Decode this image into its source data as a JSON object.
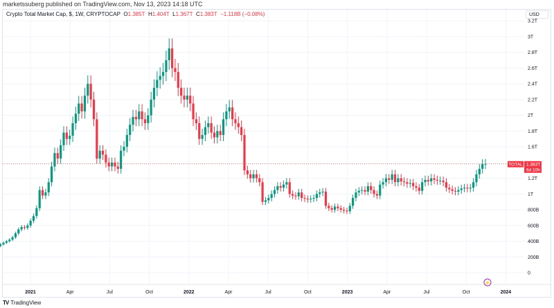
{
  "publisher": "marketssuberg published on TradingView.com, Nov 13, 2023 14:18 UTC",
  "legend": {
    "symbol": "Crypto Total Market Cap, $, 1W, CRYPTOCAP",
    "o_label": "O",
    "o": "1.385T",
    "h_label": "H",
    "h": "1.404T",
    "l_label": "L",
    "l": "1.367T",
    "c_label": "C",
    "c": "1.383T",
    "change": "−1.118B (−0.08%)"
  },
  "currency": "USD",
  "price_tag": {
    "symbol": "TOTAL",
    "price": "1.383T",
    "countdown": "6d 10h"
  },
  "footer": {
    "brand": "TradingView"
  },
  "colors": {
    "up": "#089981",
    "down": "#f23645",
    "grid": "#f0f3fa",
    "event": "#9c27b0"
  },
  "chart_data": {
    "type": "candlestick",
    "title": "Crypto Total Market Cap, $, 1W, CRYPTOCAP",
    "ylabel": "USD",
    "ylim": [
      0,
      3.2
    ],
    "y_unit": "T",
    "y_ticks": [
      {
        "v": 0,
        "label": "0"
      },
      {
        "v": 0.2,
        "label": "200B"
      },
      {
        "v": 0.4,
        "label": "400B"
      },
      {
        "v": 0.6,
        "label": "600B"
      },
      {
        "v": 0.8,
        "label": "800B"
      },
      {
        "v": 1.0,
        "label": "1T"
      },
      {
        "v": 1.2,
        "label": "1.2T"
      },
      {
        "v": 1.6,
        "label": "1.6T"
      },
      {
        "v": 1.8,
        "label": "1.8T"
      },
      {
        "v": 2.0,
        "label": "2T"
      },
      {
        "v": 2.2,
        "label": "2.2T"
      },
      {
        "v": 2.4,
        "label": "2.4T"
      },
      {
        "v": 2.6,
        "label": "2.6T"
      },
      {
        "v": 2.8,
        "label": "2.8T"
      },
      {
        "v": 3.0,
        "label": "3T"
      },
      {
        "v": 3.2,
        "label": "3.2T"
      }
    ],
    "x_ticks": [
      {
        "week": 13,
        "label": "2021",
        "bold": true
      },
      {
        "week": 26,
        "label": "Apr"
      },
      {
        "week": 39,
        "label": "Jul"
      },
      {
        "week": 52,
        "label": "Oct"
      },
      {
        "week": 65,
        "label": "2022",
        "bold": true
      },
      {
        "week": 78,
        "label": "Apr"
      },
      {
        "week": 91,
        "label": "Jul"
      },
      {
        "week": 104,
        "label": "Oct"
      },
      {
        "week": 117,
        "label": "2023",
        "bold": true
      },
      {
        "week": 130,
        "label": "Apr"
      },
      {
        "week": 143,
        "label": "Jul"
      },
      {
        "week": 156,
        "label": "Oct"
      },
      {
        "week": 169,
        "label": "2024",
        "bold": true
      }
    ],
    "start_open": 0.34,
    "weekly_close": [
      0.36,
      0.38,
      0.4,
      0.42,
      0.45,
      0.5,
      0.55,
      0.58,
      0.57,
      0.6,
      0.66,
      0.72,
      0.82,
      1.05,
      0.98,
      1.02,
      1.15,
      1.35,
      1.52,
      1.45,
      1.62,
      1.78,
      1.7,
      1.74,
      1.9,
      2.02,
      2.15,
      2.05,
      2.25,
      2.4,
      2.2,
      1.95,
      1.45,
      1.55,
      1.5,
      1.4,
      1.35,
      1.4,
      1.35,
      1.32,
      1.55,
      1.6,
      1.75,
      1.88,
      1.98,
      1.95,
      2.05,
      1.95,
      1.9,
      2.0,
      2.2,
      2.35,
      2.45,
      2.5,
      2.55,
      2.7,
      2.85,
      2.6,
      2.55,
      2.35,
      2.25,
      2.2,
      2.25,
      2.15,
      1.95,
      1.9,
      1.7,
      1.75,
      1.85,
      1.9,
      1.78,
      1.72,
      1.8,
      1.75,
      1.95,
      2.05,
      2.1,
      1.95,
      1.9,
      1.85,
      1.75,
      1.3,
      1.25,
      1.2,
      1.25,
      1.2,
      1.15,
      0.9,
      0.92,
      0.95,
      1.0,
      1.05,
      1.1,
      1.08,
      1.12,
      1.15,
      1.0,
      0.98,
      0.97,
      1.02,
      0.95,
      0.94,
      0.93,
      0.94,
      0.95,
      1.0,
      1.02,
      1.03,
      0.85,
      0.82,
      0.8,
      0.84,
      0.82,
      0.8,
      0.79,
      0.78,
      0.85,
      0.95,
      1.02,
      1.04,
      1.05,
      1.03,
      1.1,
      1.05,
      1.0,
      0.98,
      1.12,
      1.15,
      1.2,
      1.18,
      1.25,
      1.15,
      1.2,
      1.16,
      1.15,
      1.13,
      1.14,
      1.1,
      1.08,
      1.04,
      1.15,
      1.18,
      1.16,
      1.2,
      1.18,
      1.17,
      1.17,
      1.15,
      1.08,
      1.06,
      1.04,
      1.03,
      1.05,
      1.07,
      1.08,
      1.07,
      1.08,
      1.15,
      1.25,
      1.32,
      1.38,
      1.383
    ],
    "last_price": 1.383
  }
}
